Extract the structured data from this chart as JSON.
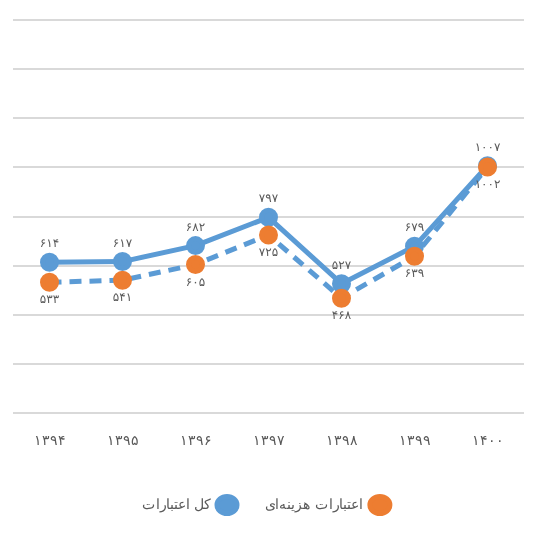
{
  "chart_data": {
    "type": "line",
    "categories": [
      "۱۳۹۴",
      "۱۳۹۵",
      "۱۳۹۶",
      "۱۳۹۷",
      "۱۳۹۸",
      "۱۳۹۹",
      "۱۴۰۰"
    ],
    "series": [
      {
        "name": "کل اعتبارات",
        "color": "#5b9bd5",
        "line_style": "solid",
        "values": [
          614,
          617,
          682,
          797,
          527,
          679,
          1007
        ],
        "value_labels": [
          "۶۱۴",
          "۶۱۷",
          "۶۸۲",
          "۷۹۷",
          "۵۲۷",
          "۶۷۹",
          "۱۰۰۷"
        ]
      },
      {
        "name": "اعتبارات هزینه‌ای",
        "color": "#5b9bd5",
        "colors": [
          "#ed7d31",
          "#ed7d31",
          "#ed7d31",
          "#ed7d31",
          "#ed7d31",
          "#ed7d31",
          "#ed7d31"
        ],
        "line_style": "dashed",
        "values": [
          533,
          541,
          605,
          725,
          468,
          639,
          1002
        ],
        "value_labels": [
          "۵۳۳",
          "۵۴۱",
          "۶۰۵",
          "۷۲۵",
          "۴۶۸",
          "۶۳۹",
          "۱۰۰۲"
        ]
      }
    ],
    "ylim": [
      0,
      1600
    ],
    "yticks": [
      0,
      200,
      400,
      600,
      800,
      1000,
      1200,
      1400,
      1600
    ],
    "tick_labels": "x",
    "grid": "y",
    "legend": "bottom",
    "marker": "circle"
  }
}
